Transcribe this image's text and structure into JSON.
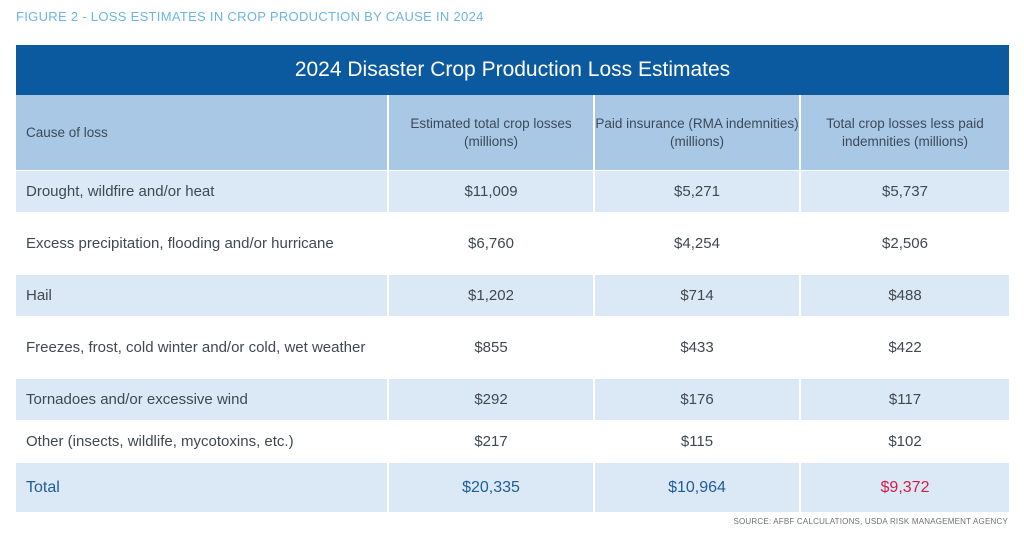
{
  "figure_label": "FIGURE 2 - LOSS ESTIMATES IN CROP PRODUCTION BY CAUSE IN 2024",
  "table": {
    "title": "2024 Disaster Crop Production Loss Estimates",
    "headers": [
      "Cause of loss",
      "Estimated total crop losses (millions)",
      "Paid insurance (RMA indemnities) (millions)",
      "Total crop losses less paid indemnities (millions)"
    ],
    "rows": [
      [
        "Drought, wildfire and/or heat",
        "$11,009",
        "$5,271",
        "$5,737"
      ],
      [
        "Excess precipitation, flooding and/or hurricane",
        "$6,760",
        "$4,254",
        "$2,506"
      ],
      [
        "Hail",
        "$1,202",
        "$714",
        "$488"
      ],
      [
        "Freezes, frost, cold winter and/or cold, wet weather",
        "$855",
        "$433",
        "$422"
      ],
      [
        "Tornadoes and/or excessive wind",
        "$292",
        "$176",
        "$117"
      ],
      [
        "Other (insects, wildlife, mycotoxins, etc.)",
        "$217",
        "$115",
        "$102"
      ]
    ],
    "total": [
      "Total",
      "$20,335",
      "$10,964",
      "$9,372"
    ]
  },
  "source": "SOURCE: AFBF CALCULATIONS, USDA RISK MANAGEMENT AGENCY",
  "colors": {
    "title_bar": "#0b5aa0",
    "header_bg": "#a9c8e6",
    "band_bg": "#dbe9f6",
    "total_text": "#1f5c9a",
    "negative_text": "#d11f45"
  }
}
